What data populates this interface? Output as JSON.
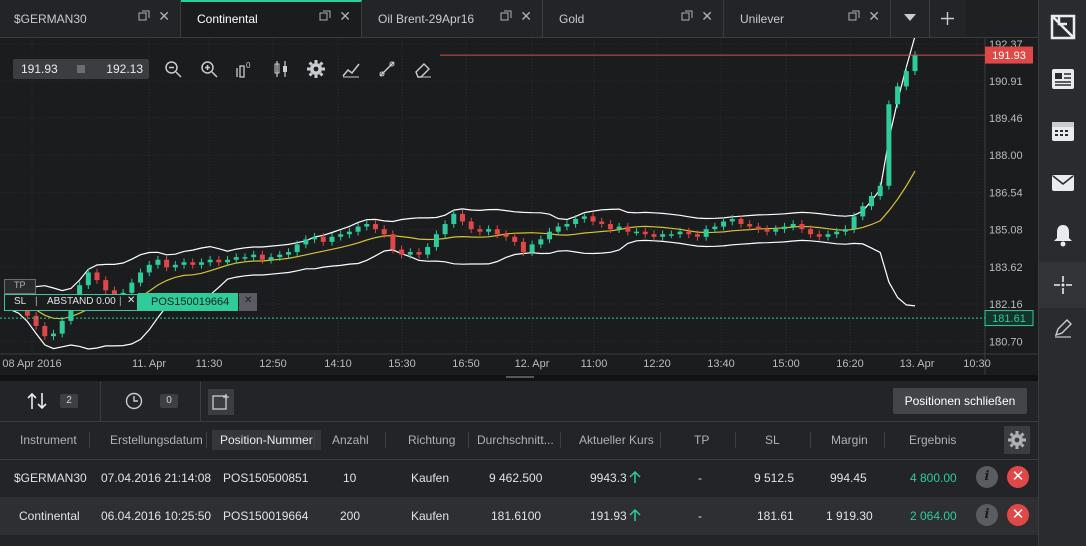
{
  "tabs": [
    {
      "label": "$GERMAN30",
      "active": false
    },
    {
      "label": "Continental",
      "active": true
    },
    {
      "label": "Oil Brent-29Apr16",
      "active": false
    },
    {
      "label": "Gold",
      "active": false
    },
    {
      "label": "Unilever",
      "active": false
    }
  ],
  "chart": {
    "bid": "191.93",
    "ask": "192.13",
    "current_price_label": "191.93",
    "position_price_label": "181.61",
    "y_ticks": [
      "192.37",
      "190.91",
      "189.46",
      "188.00",
      "186.54",
      "185.08",
      "183.62",
      "182.16",
      "180.70"
    ],
    "x_ticks": [
      "08 Apr 2016",
      "11. Apr",
      "11:30",
      "12:50",
      "14:10",
      "15:30",
      "16:50",
      "12. Apr",
      "11:00",
      "12:20",
      "13:40",
      "15:00",
      "16:20",
      "13. Apr",
      "10:30"
    ],
    "tp_label": "TP",
    "sl_label": "SL",
    "distance_label": "ABSTAND 0.00",
    "position_label": "POS150019664"
  },
  "chart_data": {
    "type": "candlestick",
    "ylim": [
      180.2,
      192.6
    ],
    "current_price": 191.93,
    "position_price": 181.61,
    "colors": {
      "up": "#2ecc9a",
      "down": "#e04848",
      "band": "#ffffff",
      "middle": "#d6c332",
      "price_line": "#e04848",
      "position_line": "#2ecc9a"
    },
    "closes": [
      182.5,
      182.2,
      181.7,
      181.3,
      180.9,
      181.0,
      181.5,
      182.2,
      182.9,
      183.4,
      183.1,
      182.7,
      182.5,
      182.6,
      183.0,
      183.4,
      183.7,
      183.9,
      183.6,
      183.7,
      183.8,
      183.7,
      183.8,
      183.9,
      183.8,
      183.9,
      184.0,
      184.0,
      184.1,
      183.9,
      184.0,
      184.1,
      184.2,
      184.5,
      184.7,
      184.8,
      184.6,
      184.8,
      184.9,
      185.0,
      185.2,
      185.3,
      185.1,
      184.9,
      184.3,
      184.1,
      184.2,
      184.1,
      184.4,
      184.9,
      185.3,
      185.7,
      185.4,
      185.1,
      185.0,
      185.1,
      184.9,
      184.8,
      184.6,
      184.2,
      184.5,
      184.7,
      185.0,
      185.2,
      185.3,
      185.5,
      185.6,
      185.4,
      185.3,
      185.1,
      185.2,
      185.0,
      185.0,
      184.9,
      184.8,
      184.9,
      184.9,
      185.0,
      184.9,
      184.8,
      185.1,
      185.2,
      185.4,
      185.5,
      185.3,
      185.2,
      185.1,
      185.0,
      185.1,
      185.2,
      185.3,
      185.1,
      184.9,
      184.8,
      184.9,
      185.0,
      185.1,
      185.6,
      186.0,
      186.4,
      186.8,
      190.0,
      190.7,
      191.3,
      191.93
    ]
  },
  "positions": {
    "count": "2",
    "orders_count": "0",
    "close_all_label": "Positionen schließen",
    "columns": [
      "Instrument",
      "Erstellungsdatum",
      "Position-Nummer",
      "Anzahl",
      "Richtung",
      "Durchschnitt...",
      "Aktueller Kurs",
      "TP",
      "SL",
      "Margin",
      "Ergebnis"
    ],
    "rows": [
      {
        "instrument": "$GERMAN30",
        "date": "07.04.2016 21:14:08",
        "id": "POS150500851",
        "qty": "10",
        "dir": "Kaufen",
        "avg": "9 462.500",
        "current": "9943.3",
        "tp": "-",
        "sl": "9 512.5",
        "margin": "994.45",
        "result": "4 800.00"
      },
      {
        "instrument": "Continental",
        "date": "06.04.2016 10:25:50",
        "id": "POS150019664",
        "qty": "200",
        "dir": "Kaufen",
        "avg": "181.6100",
        "current": "191.93",
        "tp": "-",
        "sl": "181.61",
        "margin": "1 919.30",
        "result": "2 064.00"
      }
    ]
  },
  "icons": [
    "zoom-out-icon",
    "zoom-in-icon",
    "candle-count-icon",
    "candlestick-type-icon",
    "settings-gear-icon",
    "indicator-icon",
    "drawing-tool-icon",
    "eraser-icon",
    "logo-icon",
    "news-icon",
    "calendar-icon",
    "mail-icon",
    "bell-icon",
    "crosshair-icon",
    "pencil-icon"
  ]
}
